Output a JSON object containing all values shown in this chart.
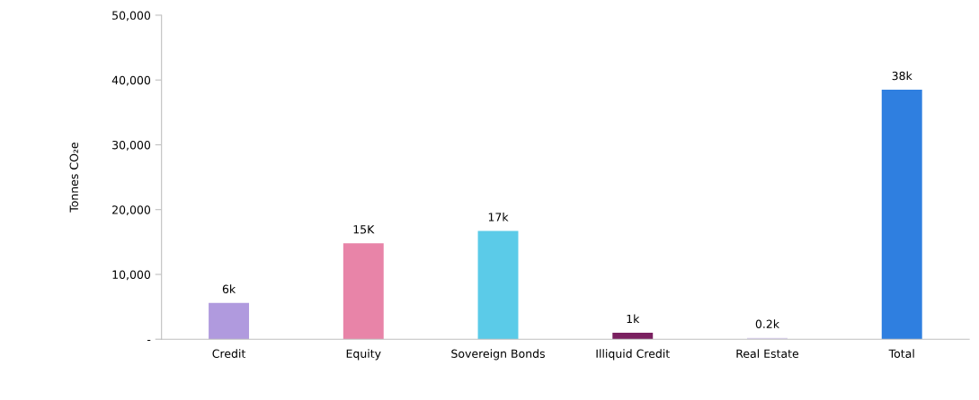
{
  "chart_data": {
    "type": "bar",
    "ylabel": "Tonnes CO₂e",
    "categories": [
      "Credit",
      "Equity",
      "Sovereign Bonds",
      "Illiquid Credit",
      "Real Estate",
      "Total"
    ],
    "values": [
      5600,
      14800,
      16700,
      1000,
      200,
      38500
    ],
    "colors": [
      "#b09ade",
      "#e884a8",
      "#5bcbe8",
      "#7a2060",
      "#d9d0ec",
      "#2f7fe0"
    ],
    "value_labels": [
      "6k",
      "15K",
      "17k",
      "1k",
      "0.2k",
      "38k"
    ],
    "ylim": [
      0,
      50000
    ],
    "yticks": [
      {
        "value": 0,
        "label": "-"
      },
      {
        "value": 10000,
        "label": "10,000"
      },
      {
        "value": 20000,
        "label": "20,000"
      },
      {
        "value": 30000,
        "label": "30,000"
      },
      {
        "value": 40000,
        "label": "40,000"
      },
      {
        "value": 50000,
        "label": "50,000"
      }
    ],
    "grid": false,
    "legend": false
  }
}
